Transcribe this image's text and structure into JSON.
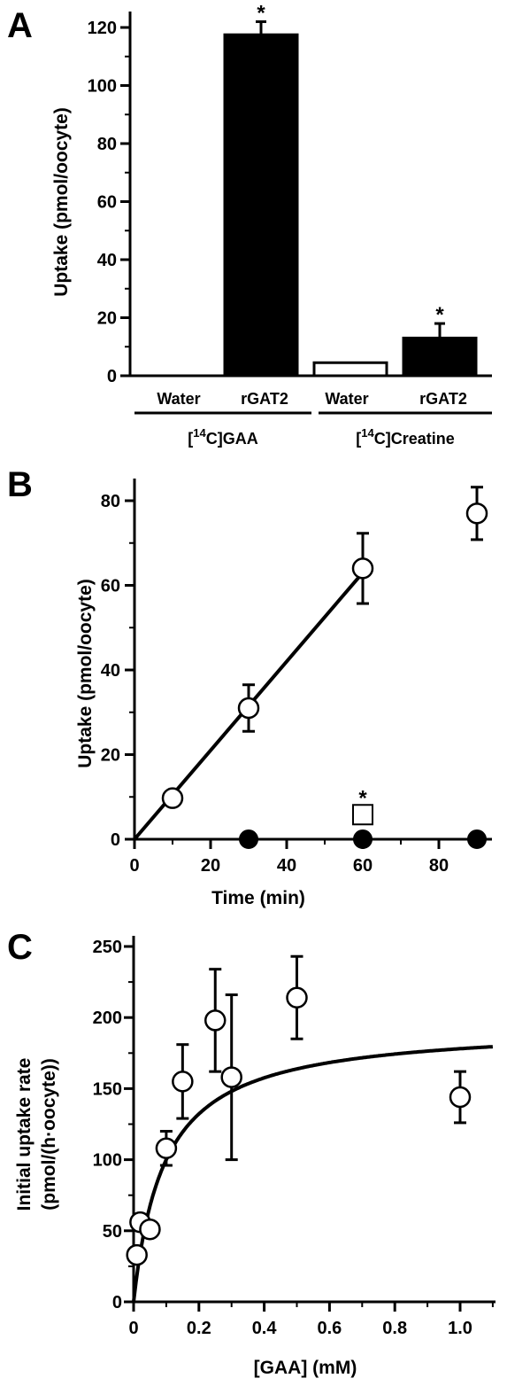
{
  "colors": {
    "ink": "#000000",
    "paper": "#ffffff"
  },
  "panels": {
    "A": {
      "letter": "A"
    },
    "B": {
      "letter": "B"
    },
    "C": {
      "letter": "C"
    }
  },
  "chart_data": [
    {
      "panel": "A",
      "type": "bar",
      "ylabel": "Uptake (pmol/oocyte)",
      "xlabel": "",
      "ylim": [
        0,
        120
      ],
      "yticks": [
        0,
        20,
        40,
        60,
        80,
        100,
        120
      ],
      "groups": [
        {
          "label_pre": "[",
          "label_sup": "14",
          "label_post": "C]GAA",
          "bars": [
            {
              "category": "Water",
              "value": 0,
              "error": 0,
              "fill": "white",
              "significant": false
            },
            {
              "category": "rGAT2",
              "value": 117.5,
              "error": 4.5,
              "fill": "black",
              "significant": true
            }
          ]
        },
        {
          "label_pre": "[",
          "label_sup": "14",
          "label_post": "C]Creatine",
          "bars": [
            {
              "category": "Water",
              "value": 4.5,
              "error": 0,
              "fill": "white",
              "significant": false
            },
            {
              "category": "rGAT2",
              "value": 13,
              "error": 5,
              "fill": "black",
              "significant": true
            }
          ]
        }
      ],
      "significance_marker": "*"
    },
    {
      "panel": "B",
      "type": "scatter",
      "xlabel": "Time (min)",
      "ylabel": "Uptake (pmol/oocyte)",
      "xlim": [
        0,
        95
      ],
      "ylim": [
        0,
        85
      ],
      "xticks": [
        0,
        20,
        40,
        60,
        80
      ],
      "yticks": [
        0,
        20,
        40,
        60,
        80
      ],
      "series": [
        {
          "marker": "open-circle",
          "points": [
            {
              "x": 10,
              "y": 9.7,
              "err": 0
            },
            {
              "x": 30,
              "y": 31,
              "err": 5.5
            },
            {
              "x": 60,
              "y": 64,
              "err": 8.3
            },
            {
              "x": 90,
              "y": 77,
              "err": 6.2
            }
          ],
          "fit_line": {
            "x": [
              0,
              60
            ],
            "y": [
              0,
              63
            ]
          }
        },
        {
          "marker": "filled-circle",
          "points": [
            {
              "x": 30,
              "y": 0,
              "err": 0
            },
            {
              "x": 60,
              "y": 0,
              "err": 0
            },
            {
              "x": 90,
              "y": 0,
              "err": 0
            }
          ]
        },
        {
          "marker": "open-square",
          "points": [
            {
              "x": 60,
              "y": 5.6,
              "err": 0,
              "significant": true
            }
          ]
        }
      ],
      "significance_marker": "*"
    },
    {
      "panel": "C",
      "type": "scatter",
      "xlabel": "[GAA] (mM)",
      "ylabel_line1": "Initial uptake rate",
      "ylabel_line2": "(pmol/(h·oocyte))",
      "xlim": [
        0,
        1.1
      ],
      "ylim": [
        0,
        250
      ],
      "xticks": [
        "0",
        "0.2",
        "0.4",
        "0.6",
        "0.8",
        "1.0"
      ],
      "xtick_values": [
        0,
        0.2,
        0.4,
        0.6,
        0.8,
        1.0
      ],
      "yticks": [
        0,
        50,
        100,
        150,
        200,
        250
      ],
      "series": [
        {
          "marker": "open-circle",
          "points": [
            {
              "x": 0.01,
              "y": 33,
              "err": 0
            },
            {
              "x": 0.02,
              "y": 56,
              "err": 0
            },
            {
              "x": 0.05,
              "y": 51,
              "err": 0
            },
            {
              "x": 0.1,
              "y": 108,
              "err": 12
            },
            {
              "x": 0.15,
              "y": 155,
              "err": 26
            },
            {
              "x": 0.25,
              "y": 198,
              "err": 36
            },
            {
              "x": 0.3,
              "y": 158,
              "err": 58
            },
            {
              "x": 0.5,
              "y": 214,
              "err": 29
            },
            {
              "x": 1.0,
              "y": 144,
              "err": 18
            }
          ],
          "fit_curve": {
            "model": "michaelis-menten",
            "vmax": 195,
            "km": 0.095
          }
        }
      ]
    }
  ]
}
